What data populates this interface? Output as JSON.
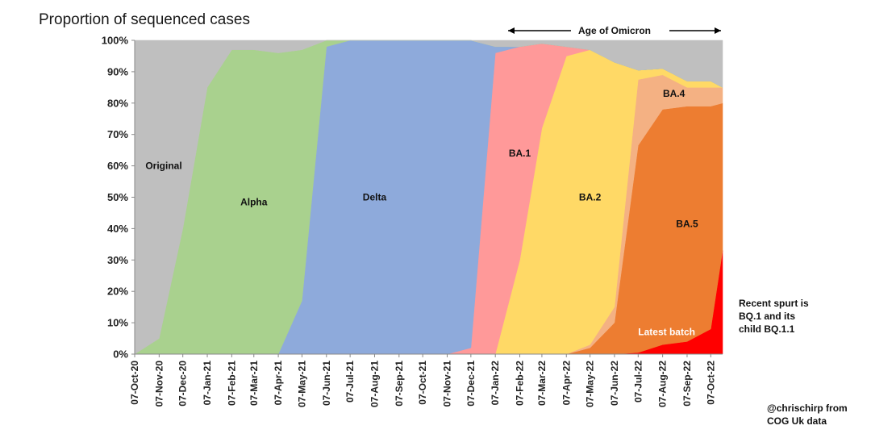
{
  "chart_data": {
    "type": "area",
    "stacked": true,
    "normalized": true,
    "title": "Proportion of sequenced cases",
    "xlabel": "",
    "ylabel": "",
    "ylim": [
      0,
      100
    ],
    "y_ticks": [
      "0%",
      "10%",
      "20%",
      "30%",
      "40%",
      "50%",
      "60%",
      "70%",
      "80%",
      "90%",
      "100%"
    ],
    "x_ticks": [
      "07-Oct-20",
      "07-Nov-20",
      "07-Dec-20",
      "07-Jan-21",
      "07-Feb-21",
      "07-Mar-21",
      "07-Apr-21",
      "07-May-21",
      "07-Jun-21",
      "07-Jul-21",
      "07-Aug-21",
      "07-Sep-21",
      "07-Oct-21",
      "07-Nov-21",
      "07-Dec-21",
      "07-Jan-22",
      "07-Feb-22",
      "07-Mar-22",
      "07-Apr-22",
      "07-May-22",
      "07-Jun-22",
      "07-Jul-22",
      "07-Aug-22",
      "07-Sep-22",
      "07-Oct-22"
    ],
    "x": [
      "2020-10-07",
      "2020-11-07",
      "2020-12-07",
      "2021-01-07",
      "2021-02-07",
      "2021-03-07",
      "2021-04-07",
      "2021-05-07",
      "2021-06-07",
      "2021-07-07",
      "2021-08-07",
      "2021-09-07",
      "2021-10-07",
      "2021-11-07",
      "2021-12-07",
      "2022-01-07",
      "2022-02-07",
      "2022-03-07",
      "2022-04-07",
      "2022-05-07",
      "2022-06-07",
      "2022-07-07",
      "2022-08-07",
      "2022-09-07",
      "2022-10-07",
      "2022-10-22"
    ],
    "series": [
      {
        "name": "Latest batch",
        "color": "#ff0000",
        "values": [
          0,
          0,
          0,
          0,
          0,
          0,
          0,
          0,
          0,
          0,
          0,
          0,
          0,
          0,
          0,
          0,
          0,
          0,
          0,
          0,
          0,
          0.5,
          3,
          4,
          8,
          33
        ]
      },
      {
        "name": "BA.5",
        "color": "#ed7d31",
        "values": [
          0,
          0,
          0,
          0,
          0,
          0,
          0,
          0,
          0,
          0,
          0,
          0,
          0,
          0,
          0,
          0,
          0,
          0,
          0,
          2,
          10,
          66,
          75,
          75,
          71,
          47
        ]
      },
      {
        "name": "BA.4",
        "color": "#f4b183",
        "values": [
          0,
          0,
          0,
          0,
          0,
          0,
          0,
          0,
          0,
          0,
          0,
          0,
          0,
          0,
          0,
          0,
          0,
          0,
          0,
          1,
          5,
          21,
          11,
          6,
          6,
          5
        ]
      },
      {
        "name": "BA.2",
        "color": "#ffd966",
        "values": [
          0,
          0,
          0,
          0,
          0,
          0,
          0,
          0,
          0,
          0,
          0,
          0,
          0,
          0,
          0,
          0,
          30,
          72,
          95,
          94,
          78,
          3,
          2,
          2,
          2,
          0
        ]
      },
      {
        "name": "BA.1",
        "color": "#ff9999",
        "values": [
          0,
          0,
          0,
          0,
          0,
          0,
          0,
          0,
          0,
          0,
          0,
          0,
          0,
          0,
          2,
          96,
          68,
          27,
          3,
          0,
          0,
          0,
          0,
          0,
          0,
          0
        ]
      },
      {
        "name": "Delta",
        "color": "#8eaadb",
        "values": [
          0,
          0,
          0,
          0,
          0,
          0,
          0,
          17,
          98,
          100,
          100,
          100,
          100,
          100,
          98,
          2,
          0,
          0,
          0,
          0,
          0,
          0,
          0,
          0,
          0,
          0
        ]
      },
      {
        "name": "Alpha",
        "color": "#a9d18e",
        "values": [
          0,
          5,
          40,
          85,
          97,
          97,
          96,
          80,
          2,
          0,
          0,
          0,
          0,
          0,
          0,
          0,
          0,
          0,
          0,
          0,
          0,
          0,
          0,
          0,
          0,
          0
        ]
      },
      {
        "name": "Original",
        "color": "#bfbfbf",
        "values": [
          100,
          95,
          60,
          15,
          3,
          3,
          4,
          3,
          0,
          0,
          0,
          0,
          0,
          0,
          0,
          2,
          2,
          1,
          2,
          3,
          7,
          9.5,
          9,
          13,
          13,
          15
        ]
      }
    ],
    "annotations": {
      "age_of_omicron": "Age of Omicron",
      "note_lines": [
        "Recent spurt is",
        "BQ.1 and its",
        "child BQ.1.1"
      ],
      "credit_lines": [
        "@chrischirp  from",
        "COG Uk data"
      ]
    },
    "grid": false,
    "legend": "none (series labelled inside areas)"
  }
}
